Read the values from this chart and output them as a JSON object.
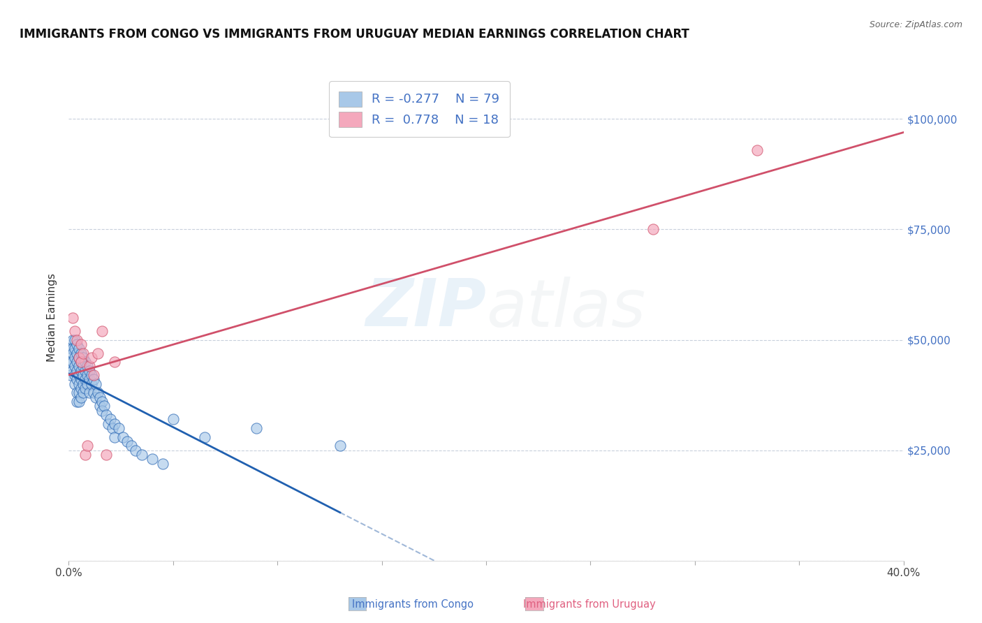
{
  "title": "IMMIGRANTS FROM CONGO VS IMMIGRANTS FROM URUGUAY MEDIAN EARNINGS CORRELATION CHART",
  "source": "Source: ZipAtlas.com",
  "ylabel": "Median Earnings",
  "xlim": [
    0.0,
    0.4
  ],
  "ylim": [
    0,
    110000
  ],
  "y_ticks": [
    0,
    25000,
    50000,
    75000,
    100000
  ],
  "y_tick_labels": [
    "",
    "$25,000",
    "$50,000",
    "$75,000",
    "$100,000"
  ],
  "congo_R": -0.277,
  "congo_N": 79,
  "uruguay_R": 0.778,
  "uruguay_N": 18,
  "congo_color": "#a8c8e8",
  "uruguay_color": "#f4a8bc",
  "congo_line_color": "#2060b0",
  "uruguay_line_color": "#d0506a",
  "dashed_line_color": "#a0b8d8",
  "background_color": "#ffffff",
  "grid_color": "#c8d0dc",
  "congo_x": [
    0.001,
    0.001,
    0.001,
    0.002,
    0.002,
    0.002,
    0.002,
    0.002,
    0.003,
    0.003,
    0.003,
    0.003,
    0.003,
    0.003,
    0.004,
    0.004,
    0.004,
    0.004,
    0.004,
    0.004,
    0.004,
    0.005,
    0.005,
    0.005,
    0.005,
    0.005,
    0.005,
    0.005,
    0.006,
    0.006,
    0.006,
    0.006,
    0.006,
    0.006,
    0.007,
    0.007,
    0.007,
    0.007,
    0.007,
    0.008,
    0.008,
    0.008,
    0.008,
    0.009,
    0.009,
    0.009,
    0.01,
    0.01,
    0.01,
    0.011,
    0.011,
    0.012,
    0.012,
    0.013,
    0.013,
    0.014,
    0.015,
    0.015,
    0.016,
    0.016,
    0.017,
    0.018,
    0.019,
    0.02,
    0.021,
    0.022,
    0.022,
    0.024,
    0.026,
    0.028,
    0.03,
    0.032,
    0.035,
    0.04,
    0.045,
    0.05,
    0.065,
    0.09,
    0.13
  ],
  "congo_y": [
    48000,
    45000,
    42000,
    50000,
    48000,
    47000,
    45000,
    43000,
    50000,
    48000,
    46000,
    44000,
    42000,
    40000,
    49000,
    47000,
    45000,
    43000,
    41000,
    38000,
    36000,
    48000,
    46000,
    44000,
    42000,
    40000,
    38000,
    36000,
    47000,
    45000,
    43000,
    41000,
    39000,
    37000,
    46000,
    44000,
    42000,
    40000,
    38000,
    45000,
    43000,
    41000,
    39000,
    44000,
    42000,
    40000,
    43000,
    41000,
    38000,
    42000,
    40000,
    41000,
    38000,
    40000,
    37000,
    38000,
    37000,
    35000,
    36000,
    34000,
    35000,
    33000,
    31000,
    32000,
    30000,
    31000,
    28000,
    30000,
    28000,
    27000,
    26000,
    25000,
    24000,
    23000,
    22000,
    32000,
    28000,
    30000,
    26000
  ],
  "uruguay_x": [
    0.002,
    0.003,
    0.004,
    0.005,
    0.006,
    0.006,
    0.007,
    0.008,
    0.009,
    0.01,
    0.011,
    0.012,
    0.014,
    0.016,
    0.018,
    0.022,
    0.28,
    0.33
  ],
  "uruguay_y": [
    55000,
    52000,
    50000,
    46000,
    49000,
    45000,
    47000,
    24000,
    26000,
    44000,
    46000,
    42000,
    47000,
    52000,
    24000,
    45000,
    75000,
    93000
  ],
  "title_fontsize": 12,
  "axis_tick_fontsize": 11,
  "ylabel_fontsize": 11,
  "watermark_zip_color": "#5b9bd5",
  "watermark_atlas_color": "#b0bcc8"
}
